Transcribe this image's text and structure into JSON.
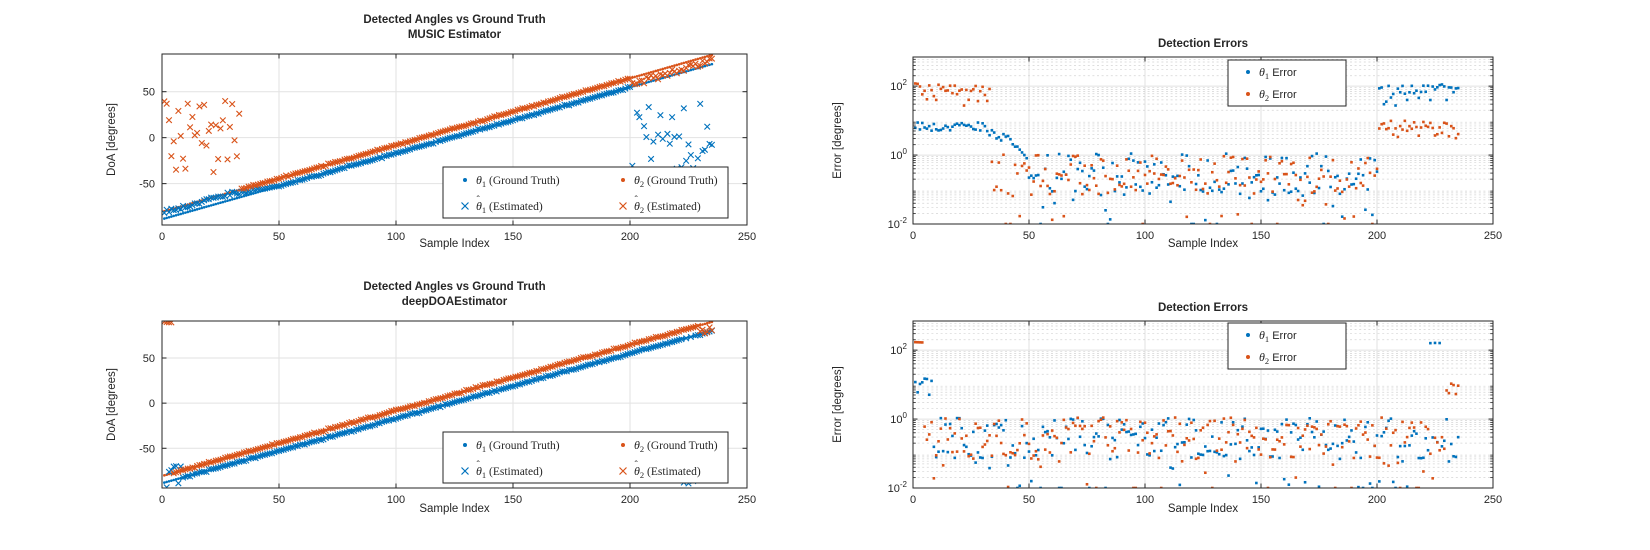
{
  "figure": {
    "background": "#ffffff"
  },
  "colors": {
    "theta1": "#0072BD",
    "theta2": "#D95319",
    "axis": "#262626",
    "text": "#262626",
    "grid_major": "#e2e2e2",
    "grid_minor": "#d4d4d4",
    "legend_bg": "#ffffff"
  },
  "chart_data": [
    {
      "id": "music-angles",
      "type": "scatter",
      "title_lines": [
        "Detected Angles vs Ground Truth",
        "MUSIC Estimator"
      ],
      "xlabel": "Sample Index",
      "ylabel": "DoA [degrees]",
      "xlim": [
        0,
        250
      ],
      "ylim": [
        -95,
        91
      ],
      "xticks": [
        0,
        50,
        100,
        150,
        200,
        250
      ],
      "yticks": [
        -50,
        0,
        50
      ],
      "grid": "major",
      "n_samples": 235,
      "lognoise_default": {
        "p_low": 0.15,
        "main": [
          -1.15,
          0.05
        ],
        "low": [
          -2.4,
          -1.0
        ]
      },
      "legend": {
        "columns": 2
      },
      "series": [
        {
          "name": "theta1-truth",
          "marker": "dot",
          "color": "#0072BD",
          "legend": {
            "sym": "θ",
            "sub": "1",
            "hat": false,
            "rest": "(Ground Truth)"
          },
          "gen": {
            "kind": "ramp",
            "start": -88,
            "end": 80,
            "seed": 101
          }
        },
        {
          "name": "theta2-truth",
          "marker": "dot",
          "color": "#D95319",
          "legend": {
            "sym": "θ",
            "sub": "2",
            "hat": false,
            "rest": "(Ground Truth)"
          },
          "gen": {
            "kind": "ramp",
            "start": -80,
            "end": 90,
            "seed": 102
          }
        },
        {
          "name": "theta1-est",
          "marker": "x",
          "color": "#0072BD",
          "legend": {
            "sym": "θ",
            "sub": "1",
            "hat": true,
            "rest": "(Estimated)"
          },
          "gen": {
            "kind": "estimate",
            "base": "theta1-truth",
            "seed": 103,
            "segments": [
              {
                "from": 0,
                "to": 31,
                "mode": "offset",
                "lo": 5,
                "hi": 9,
                "sign": "+"
              },
              {
                "from": 31,
                "to": 48,
                "mode": "offset",
                "lo": 1,
                "hi": 5,
                "sign": "+",
                "decay": true
              },
              {
                "from": 48,
                "to": 200,
                "mode": "lognoise"
              },
              {
                "from": 200,
                "to": 235,
                "mode": "uniform",
                "lo": -48,
                "hi": 38
              }
            ]
          }
        },
        {
          "name": "theta2-est",
          "marker": "x",
          "color": "#D95319",
          "legend": {
            "sym": "θ",
            "sub": "2",
            "hat": true,
            "rest": "(Estimated)"
          },
          "gen": {
            "kind": "estimate",
            "base": "theta2-truth",
            "seed": 104,
            "segments": [
              {
                "from": 0,
                "to": 33,
                "mode": "uniform",
                "lo": -38,
                "hi": 40
              },
              {
                "from": 33,
                "to": 200,
                "mode": "lognoise"
              },
              {
                "from": 200,
                "to": 235,
                "mode": "offset",
                "lo": 3,
                "hi": 10,
                "sign": "-"
              }
            ]
          }
        }
      ]
    },
    {
      "id": "music-errors",
      "type": "scatter",
      "title_lines": [
        "Detection Errors"
      ],
      "xlabel": "Sample Index",
      "ylabel": "Error [degrees]",
      "xlim": [
        0,
        250
      ],
      "yscale": "log",
      "ylim": [
        0.01,
        700
      ],
      "xticks": [
        0,
        50,
        100,
        150,
        200,
        250
      ],
      "ytick_exponents": [
        -2,
        0,
        2
      ],
      "grid": "major+minor",
      "derived_from": "music-angles",
      "legend": {
        "columns": 1
      },
      "series": [
        {
          "name": "theta1-error",
          "marker": "sq",
          "color": "#0072BD",
          "est": "theta1-est",
          "truth": "theta1-truth",
          "legend": {
            "sym": "θ",
            "sub": "1",
            "hat": false,
            "rest": "Error",
            "rest_sans": true
          }
        },
        {
          "name": "theta2-error",
          "marker": "sq",
          "color": "#D95319",
          "est": "theta2-est",
          "truth": "theta2-truth",
          "legend": {
            "sym": "θ",
            "sub": "2",
            "hat": false,
            "rest": "Error",
            "rest_sans": true
          }
        }
      ]
    },
    {
      "id": "deep-angles",
      "type": "scatter",
      "title_lines": [
        "Detected Angles vs Ground Truth",
        "deepDOAEstimator"
      ],
      "xlabel": "Sample Index",
      "ylabel": "DoA [degrees]",
      "xlim": [
        0,
        250
      ],
      "ylim": [
        -94,
        91
      ],
      "xticks": [
        0,
        50,
        100,
        150,
        200,
        250
      ],
      "yticks": [
        -50,
        0,
        50
      ],
      "grid": "major",
      "n_samples": 235,
      "lognoise_default": {
        "p_low": 0.15,
        "main": [
          -1.15,
          0.05
        ],
        "low": [
          -2.4,
          -1.0
        ]
      },
      "legend": {
        "columns": 2
      },
      "series": [
        {
          "name": "theta1-truth",
          "marker": "dot",
          "color": "#0072BD",
          "legend": {
            "sym": "θ",
            "sub": "1",
            "hat": false,
            "rest": "(Ground Truth)"
          },
          "gen": {
            "kind": "ramp",
            "start": -88,
            "end": 80,
            "seed": 201
          }
        },
        {
          "name": "theta2-truth",
          "marker": "dot",
          "color": "#D95319",
          "legend": {
            "sym": "θ",
            "sub": "2",
            "hat": false,
            "rest": "(Ground Truth)"
          },
          "gen": {
            "kind": "ramp",
            "start": -80,
            "end": 90,
            "seed": 202
          }
        },
        {
          "name": "theta1-est",
          "marker": "x",
          "color": "#0072BD",
          "legend": {
            "sym": "θ",
            "sub": "1",
            "hat": true,
            "rest": "(Estimated)"
          },
          "gen": {
            "kind": "estimate",
            "base": "theta1-truth",
            "seed": 203,
            "segments": [
              {
                "from": 0,
                "to": 8,
                "mode": "offset",
                "lo": 1,
                "hi": 15,
                "sign": "pm"
              },
              {
                "from": 8,
                "to": 222,
                "mode": "lognoise"
              },
              {
                "from": 222,
                "to": 228,
                "mode": "const",
                "value": -88,
                "jitter": 3,
                "step": 2
              },
              {
                "from": 228,
                "to": 235,
                "mode": "lognoise"
              }
            ]
          }
        },
        {
          "name": "theta2-est",
          "marker": "x",
          "color": "#D95319",
          "legend": {
            "sym": "θ",
            "sub": "2",
            "hat": true,
            "rest": "(Estimated)"
          },
          "gen": {
            "kind": "estimate",
            "base": "theta2-truth",
            "seed": 204,
            "segments": [
              {
                "from": 0,
                "to": 4,
                "mode": "const",
                "value": 90,
                "jitter": 1.2
              },
              {
                "from": 4,
                "to": 229,
                "mode": "lognoise"
              },
              {
                "from": 229,
                "to": 235,
                "mode": "offset",
                "lo": 2,
                "hi": 12,
                "sign": "-"
              }
            ]
          }
        }
      ]
    },
    {
      "id": "deep-errors",
      "type": "scatter",
      "title_lines": [
        "Detection Errors"
      ],
      "xlabel": "Sample Index",
      "ylabel": "Error [degrees]",
      "xlim": [
        0,
        250
      ],
      "yscale": "log",
      "ylim": [
        0.01,
        700
      ],
      "xticks": [
        0,
        50,
        100,
        150,
        200,
        250
      ],
      "ytick_exponents": [
        -2,
        0,
        2
      ],
      "grid": "major+minor",
      "derived_from": "deep-angles",
      "legend": {
        "columns": 1
      },
      "series": [
        {
          "name": "theta1-error",
          "marker": "sq",
          "color": "#0072BD",
          "est": "theta1-est",
          "truth": "theta1-truth",
          "legend": {
            "sym": "θ",
            "sub": "1",
            "hat": false,
            "rest": "Error",
            "rest_sans": true
          }
        },
        {
          "name": "theta2-error",
          "marker": "sq",
          "color": "#D95319",
          "est": "theta2-est",
          "truth": "theta2-truth",
          "legend": {
            "sym": "θ",
            "sub": "2",
            "hat": false,
            "rest": "Error",
            "rest_sans": true
          }
        }
      ]
    }
  ]
}
